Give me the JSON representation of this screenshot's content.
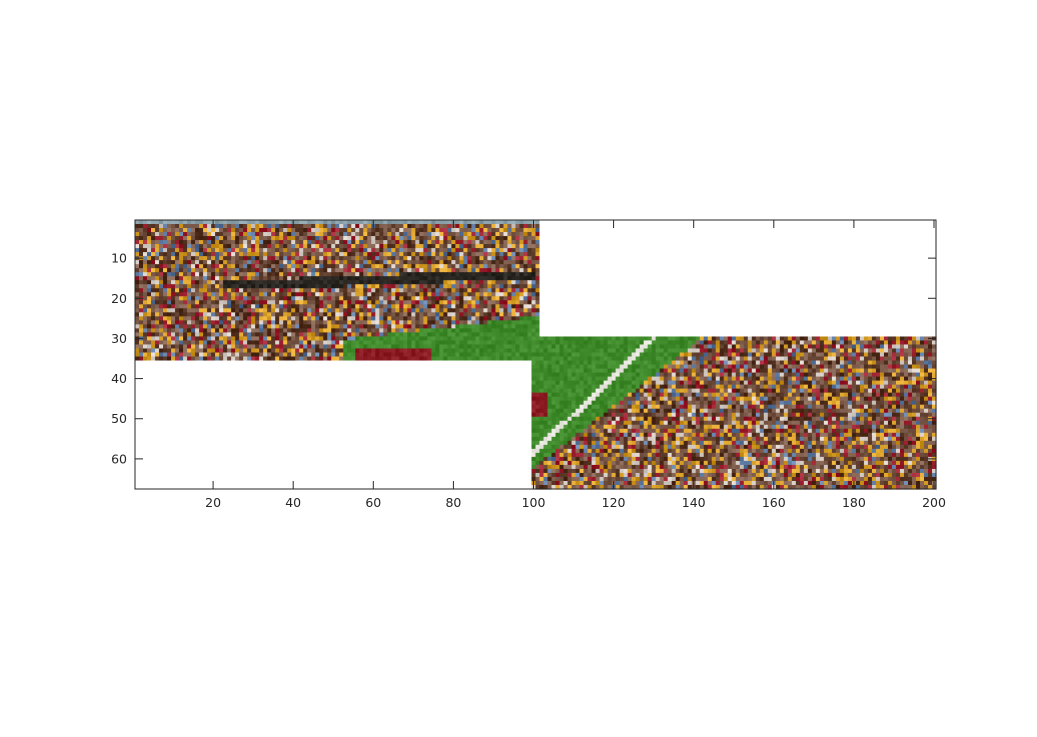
{
  "chart_data": {
    "type": "heatmap",
    "title": "",
    "xlabel": "",
    "ylabel": "",
    "xlim": [
      0.5,
      200.5
    ],
    "ylim": [
      67.5,
      0.5
    ],
    "x_ticks": [
      20,
      40,
      60,
      80,
      100,
      120,
      140,
      160,
      180,
      200
    ],
    "y_ticks": [
      10,
      20,
      30,
      40,
      50,
      60
    ],
    "x_tick_labels": [
      "20",
      "40",
      "60",
      "80",
      "100",
      "120",
      "140",
      "160",
      "180",
      "200"
    ],
    "y_tick_labels": [
      "10",
      "20",
      "30",
      "40",
      "50",
      "60"
    ],
    "grid": false,
    "y_axis_reversed": true,
    "image_tiles": [
      {
        "name": "upper-left-tile",
        "content": "stadium-stands-and-field",
        "x_range": [
          0.5,
          101.5
        ],
        "y_range": [
          0.5,
          35.5
        ]
      },
      {
        "name": "lower-right-tile",
        "content": "stadium-crowd-and-field",
        "x_range": [
          99.5,
          200.5
        ],
        "y_range": [
          29.5,
          67.5
        ]
      }
    ],
    "blank_regions": [
      {
        "x_range": [
          101.5,
          200.5
        ],
        "y_range": [
          0.5,
          29.5
        ]
      },
      {
        "x_range": [
          0.5,
          99.5
        ],
        "y_range": [
          35.5,
          67.5
        ]
      }
    ],
    "colors": {
      "crowd_base": "#6b4a3a",
      "crowd_yellow": "#d8a028",
      "crowd_red": "#9c2030",
      "crowd_blue": "#5a78a0",
      "field_green": "#3f8a2a",
      "endzone_red": "#8c1c24",
      "yard_line": "#e8e8e0",
      "axes": "#262626"
    }
  }
}
